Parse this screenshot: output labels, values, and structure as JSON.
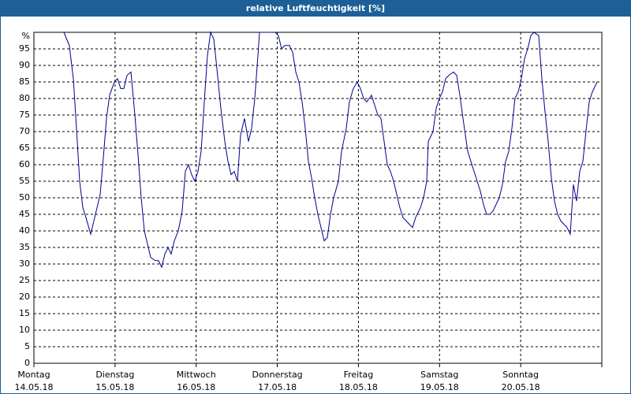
{
  "chart_data": {
    "type": "line",
    "title": "relative Luftfeuchtigkeit [%]",
    "color": "#00008b",
    "grid": true,
    "xlim": [
      0,
      7
    ],
    "ylim": [
      0,
      100
    ],
    "xticks": [
      {
        "value": 0,
        "label": "Montag",
        "date": "14.05.18"
      },
      {
        "value": 1,
        "label": "Dienstag",
        "date": "15.05.18"
      },
      {
        "value": 2,
        "label": "Mittwoch",
        "date": "16.05.18"
      },
      {
        "value": 3,
        "label": "Donnerstag",
        "date": "17.05.18"
      },
      {
        "value": 4,
        "label": "Freitag",
        "date": "18.05.18"
      },
      {
        "value": 5,
        "label": "Samstag",
        "date": "19.05.18"
      },
      {
        "value": 6,
        "label": "Sonntag",
        "date": "20.05.18"
      }
    ],
    "yticks": [
      0,
      5,
      10,
      15,
      20,
      25,
      30,
      35,
      40,
      45,
      50,
      55,
      60,
      65,
      70,
      75,
      80,
      85,
      90,
      95,
      {
        "value": 100,
        "label": "%"
      }
    ],
    "x": [
      0.369,
      0.437,
      0.486,
      0.535,
      0.564,
      0.603,
      0.642,
      0.7,
      0.758,
      0.817,
      0.856,
      0.894,
      0.933,
      0.992,
      1.031,
      1.069,
      1.108,
      1.147,
      1.196,
      1.244,
      1.283,
      1.322,
      1.361,
      1.4,
      1.439,
      1.497,
      1.536,
      1.575,
      1.614,
      1.653,
      1.692,
      1.731,
      1.779,
      1.828,
      1.867,
      1.906,
      1.944,
      1.983,
      2.022,
      2.061,
      2.1,
      2.139,
      2.178,
      2.217,
      2.256,
      2.304,
      2.353,
      2.392,
      2.431,
      2.469,
      2.508,
      2.547,
      2.596,
      2.644,
      2.683,
      2.722,
      2.761,
      2.781,
      2.858,
      2.917,
      2.975,
      3.014,
      3.053,
      3.092,
      3.15,
      3.189,
      3.228,
      3.267,
      3.306,
      3.344,
      3.383,
      3.422,
      3.461,
      3.5,
      3.539,
      3.578,
      3.617,
      3.656,
      3.694,
      3.753,
      3.792,
      3.85,
      3.889,
      3.937,
      3.986,
      4.025,
      4.064,
      4.103,
      4.161,
      4.2,
      4.239,
      4.278,
      4.317,
      4.356,
      4.394,
      4.433,
      4.472,
      4.511,
      4.55,
      4.589,
      4.628,
      4.667,
      4.705,
      4.764,
      4.803,
      4.842,
      4.861,
      4.919,
      4.958,
      4.997,
      5.036,
      5.075,
      5.114,
      5.172,
      5.211,
      5.25,
      5.289,
      5.347,
      5.386,
      5.425,
      5.464,
      5.503,
      5.542,
      5.58,
      5.619,
      5.658,
      5.697,
      5.736,
      5.775,
      5.814,
      5.853,
      5.892,
      5.93,
      5.969,
      6.008,
      6.047,
      6.086,
      6.125,
      6.164,
      6.222,
      6.261,
      6.3,
      6.339,
      6.378,
      6.417,
      6.455,
      6.494,
      6.533,
      6.572,
      6.611,
      6.65,
      6.689,
      6.728,
      6.767,
      6.805,
      6.844,
      6.883,
      6.942
    ],
    "values": [
      100,
      96,
      86,
      67,
      55,
      47,
      44,
      39,
      45,
      51,
      62,
      74,
      81,
      85,
      86,
      83,
      83,
      87,
      88,
      75,
      63,
      50,
      40,
      36,
      32,
      31,
      31,
      29,
      33,
      35,
      33,
      37,
      40,
      46,
      58,
      60,
      57,
      55,
      58,
      64,
      79,
      93,
      100,
      98,
      89,
      77,
      67,
      61,
      57,
      58,
      55,
      69,
      74,
      67,
      71,
      80,
      93,
      100,
      100,
      100,
      100,
      99,
      95,
      96,
      96,
      94,
      88,
      85,
      79,
      71,
      61,
      56,
      50,
      45,
      41,
      37,
      38,
      45,
      50,
      55,
      64,
      71,
      79,
      83,
      85,
      83,
      80,
      79,
      81,
      78,
      75,
      74,
      67,
      60,
      58,
      55,
      51,
      47,
      44,
      43,
      42,
      41,
      44,
      47,
      50,
      55,
      67,
      70,
      77,
      80,
      82,
      86,
      87,
      88,
      87,
      81,
      74,
      64,
      61,
      58,
      55,
      52,
      48,
      45,
      45,
      46,
      48,
      50,
      54,
      61,
      64,
      71,
      80,
      82,
      86,
      92,
      95,
      99,
      100,
      99,
      86,
      76,
      67,
      56,
      49,
      45,
      43,
      42,
      41,
      39,
      54,
      49,
      58,
      61,
      70,
      79,
      82,
      85
    ]
  }
}
